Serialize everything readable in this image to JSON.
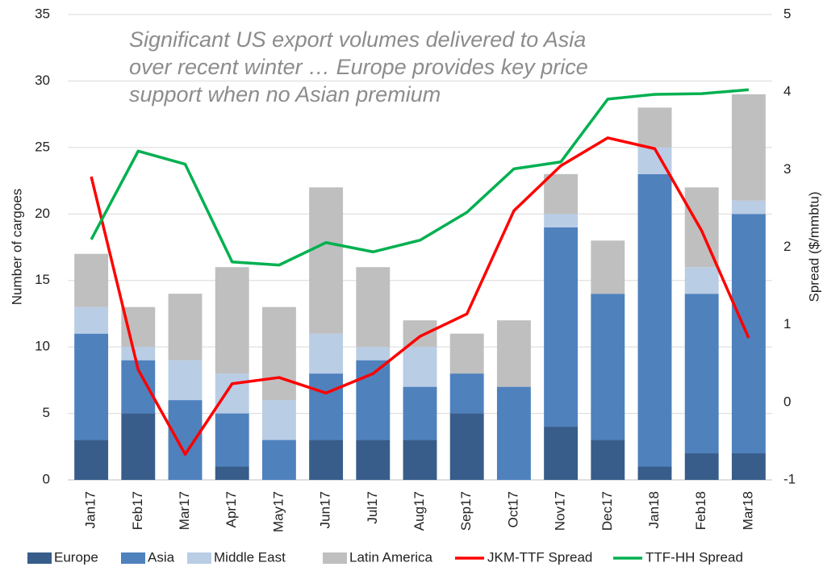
{
  "chart_data": {
    "type": "bar",
    "stacked": true,
    "annotation": [
      "Significant US export volumes delivered to Asia",
      "over recent winter … Europe provides key price",
      "support when no Asian premium"
    ],
    "y_label": "Number of cargoes",
    "y2_label": "Spread ($/mmbtu)",
    "categories": [
      "Jan17",
      "Feb17",
      "Mar17",
      "Apr17",
      "May17",
      "Jun17",
      "Jul17",
      "Aug17",
      "Sep17",
      "Oct17",
      "Nov17",
      "Dec17",
      "Jan18",
      "Feb18",
      "Mar18"
    ],
    "series": [
      {
        "name": "Europe",
        "type": "bar",
        "color": "#385d8a",
        "values": [
          3,
          5,
          0,
          1,
          0,
          3,
          3,
          3,
          5,
          0,
          4,
          3,
          1,
          2,
          2
        ]
      },
      {
        "name": "Asia",
        "type": "bar",
        "color": "#4f81bd",
        "values": [
          8,
          4,
          6,
          4,
          3,
          5,
          6,
          4,
          3,
          7,
          15,
          11,
          22,
          12,
          18
        ]
      },
      {
        "name": "Middle East",
        "type": "bar",
        "color": "#b9cde5",
        "values": [
          2,
          1,
          3,
          3,
          3,
          3,
          1,
          3,
          0,
          0,
          1,
          0,
          2,
          2,
          1
        ]
      },
      {
        "name": "Latin America",
        "type": "bar",
        "color": "#bfbfbf",
        "values": [
          4,
          3,
          5,
          8,
          7,
          11,
          6,
          2,
          3,
          5,
          3,
          4,
          3,
          6,
          8
        ]
      },
      {
        "name": "JKM-TTF Spread",
        "type": "line",
        "axis": "y2",
        "color": "#ff0000",
        "values": [
          2.91,
          0.42,
          -0.67,
          0.24,
          0.32,
          0.12,
          0.37,
          0.85,
          1.14,
          2.47,
          3.05,
          3.41,
          3.27,
          2.21,
          0.83
        ]
      },
      {
        "name": "TTF-HH Spread",
        "type": "line",
        "axis": "y2",
        "color": "#00b050",
        "values": [
          2.1,
          3.24,
          3.07,
          1.81,
          1.77,
          2.06,
          1.94,
          2.09,
          2.45,
          3.01,
          3.1,
          3.91,
          3.97,
          3.98,
          4.03
        ]
      }
    ],
    "ylim": [
      0,
      35
    ],
    "yticks": [
      0,
      5,
      10,
      15,
      20,
      25,
      30,
      35
    ],
    "y2lim": [
      -1,
      5
    ],
    "y2ticks": [
      -1,
      0,
      1,
      2,
      3,
      4,
      5
    ],
    "grid": true,
    "legend": "bottom"
  }
}
